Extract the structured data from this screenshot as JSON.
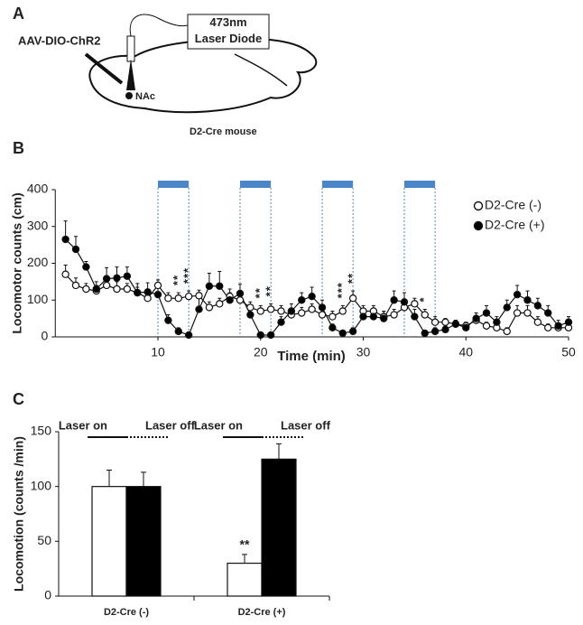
{
  "panel_labels": [
    "A",
    "B",
    "C"
  ],
  "diagram": {
    "construct": "AAV-DIO-ChR2",
    "laser": "473nm Laser Diode",
    "region": "NAc",
    "animal": "D2-Cre mouse"
  },
  "chart_data": [
    {
      "type": "line",
      "x_label": "Time (min)",
      "y_label": "Locomotor counts (cm)",
      "xlim": [
        0,
        50
      ],
      "xticks": [
        10,
        20,
        30,
        40,
        50
      ],
      "ylim": [
        0,
        400
      ],
      "yticks": [
        0,
        100,
        200,
        300,
        400
      ],
      "x": [
        1,
        2,
        3,
        4,
        5,
        6,
        7,
        8,
        9,
        10,
        11,
        12,
        13,
        14,
        15,
        16,
        17,
        18,
        19,
        20,
        21,
        22,
        23,
        24,
        25,
        26,
        27,
        28,
        29,
        30,
        31,
        32,
        33,
        34,
        35,
        36,
        37,
        38,
        39,
        40,
        41,
        42,
        43,
        44,
        45,
        46,
        47,
        48,
        49,
        50
      ],
      "laser_periods": [
        [
          10,
          13
        ],
        [
          18,
          21
        ],
        [
          26,
          29
        ],
        [
          34,
          37
        ]
      ],
      "laser_color": "#4a86c8",
      "legend": "top-right",
      "series": [
        {
          "name": "D2-Cre (-)",
          "color": "#ffffff",
          "values": [
            170,
            140,
            130,
            125,
            140,
            130,
            130,
            120,
            105,
            140,
            105,
            105,
            110,
            112,
            80,
            90,
            110,
            100,
            80,
            70,
            75,
            70,
            60,
            65,
            75,
            60,
            55,
            70,
            105,
            70,
            70,
            55,
            60,
            80,
            90,
            60,
            40,
            40,
            35,
            30,
            45,
            30,
            25,
            15,
            65,
            65,
            40,
            25,
            25,
            25
          ],
          "errors": [
            25,
            20,
            15,
            15,
            20,
            20,
            15,
            15,
            15,
            15,
            15,
            15,
            15,
            15,
            15,
            15,
            20,
            15,
            15,
            15,
            15,
            15,
            15,
            15,
            15,
            15,
            15,
            15,
            20,
            15,
            15,
            15,
            15,
            15,
            15,
            15,
            15,
            10,
            10,
            10,
            10,
            10,
            10,
            10,
            20,
            20,
            15,
            10,
            10,
            10
          ]
        },
        {
          "name": "D2-Cre (+)",
          "color": "#000000",
          "values": [
            265,
            238,
            190,
            130,
            158,
            160,
            165,
            120,
            122,
            115,
            45,
            15,
            5,
            75,
            138,
            138,
            100,
            118,
            60,
            5,
            5,
            40,
            70,
            100,
            110,
            80,
            25,
            10,
            15,
            55,
            55,
            50,
            100,
            95,
            55,
            10,
            15,
            20,
            35,
            25,
            50,
            65,
            40,
            80,
            115,
            100,
            85,
            65,
            30,
            40
          ],
          "errors": [
            50,
            35,
            15,
            20,
            30,
            30,
            25,
            25,
            25,
            25,
            15,
            10,
            5,
            30,
            35,
            40,
            20,
            25,
            20,
            5,
            5,
            15,
            20,
            20,
            25,
            20,
            10,
            5,
            10,
            20,
            15,
            20,
            25,
            25,
            20,
            5,
            10,
            10,
            10,
            10,
            15,
            20,
            15,
            20,
            25,
            25,
            20,
            20,
            15,
            15
          ]
        }
      ],
      "annotations": [
        {
          "text": "**",
          "x": 12
        },
        {
          "text": "***",
          "x": 13
        },
        {
          "text": "**",
          "x": 20
        },
        {
          "text": "**",
          "x": 21
        },
        {
          "text": "***",
          "x": 28
        },
        {
          "text": "**",
          "x": 29
        },
        {
          "text": "*",
          "x": 36
        }
      ]
    },
    {
      "type": "bar",
      "y_label": "Locomotion (counts /min)",
      "categories": [
        "D2-Cre (-)",
        "D2-Cre (+)"
      ],
      "ylim": [
        0,
        150
      ],
      "yticks": [
        0,
        50,
        100,
        150
      ],
      "series": [
        {
          "name": "Laser on",
          "color": "#ffffff",
          "values": [
            100,
            30
          ],
          "errors": [
            15,
            8
          ]
        },
        {
          "name": "Laser off",
          "color": "#000000",
          "values": [
            100,
            125
          ],
          "errors": [
            13,
            14
          ]
        }
      ],
      "annotations": [
        {
          "text": "**",
          "series": 0,
          "category": 1
        }
      ]
    }
  ]
}
